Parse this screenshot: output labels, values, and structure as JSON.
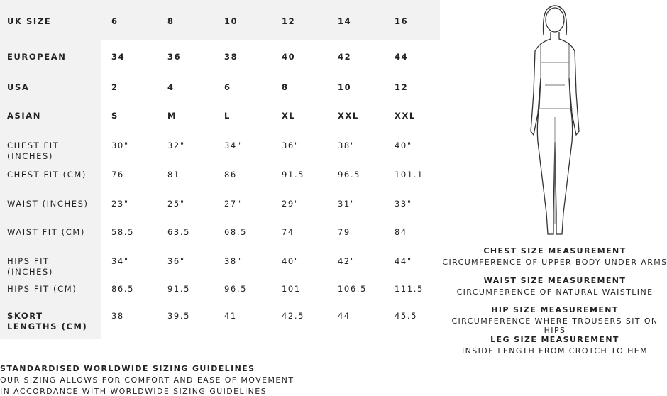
{
  "table": {
    "header": [
      "UK SIZE",
      "6",
      "8",
      "10",
      "12",
      "14",
      "16"
    ],
    "rows": [
      [
        "EUROPEAN",
        "34",
        "36",
        "38",
        "40",
        "42",
        "44"
      ],
      [
        "USA",
        "2",
        "4",
        "6",
        "8",
        "10",
        "12"
      ],
      [
        "ASIAN",
        "S",
        "M",
        "L",
        "XL",
        "XXL",
        "XXL"
      ],
      [
        "CHEST FIT (INCHES)",
        "30\"",
        "32\"",
        "34\"",
        "36\"",
        "38\"",
        "40\""
      ],
      [
        "CHEST FIT (CM)",
        "76",
        "81",
        "86",
        "91.5",
        "96.5",
        "101.1"
      ],
      [
        "WAIST (INCHES)",
        "23\"",
        "25\"",
        "27\"",
        "29\"",
        "31\"",
        "33\""
      ],
      [
        "WAIST FIT (CM)",
        "58.5",
        "63.5",
        "68.5",
        "74",
        "79",
        "84"
      ],
      [
        "HIPS FIT (INCHES)",
        "34\"",
        "36\"",
        "38\"",
        "40\"",
        "42\"",
        "44\""
      ],
      [
        "HIPS FIT (CM)",
        "86.5",
        "91.5",
        "96.5",
        "101",
        "106.5",
        "111.5"
      ],
      [
        "SKORT LENGTHS (CM)",
        "38",
        "39.5",
        "41",
        "42.5",
        "44",
        "45.5"
      ]
    ]
  },
  "measurements": [
    {
      "title": "CHEST SIZE MEASUREMENT",
      "description": "CIRCUMFERENCE OF UPPER BODY UNDER ARMS"
    },
    {
      "title": "WAIST SIZE MEASUREMENT",
      "description": "CIRCUMFERENCE OF NATURAL WAISTLINE"
    },
    {
      "title": "HIP SIZE MEASUREMENT",
      "description": "CIRCUMFERENCE WHERE TROUSERS SIT ON HIPS"
    },
    {
      "title": "LEG SIZE MEASUREMENT",
      "description": "INSIDE LENGTH FROM CROTCH TO HEM"
    }
  ],
  "footer": {
    "title": "STANDARDISED WORLDWIDE SIZING GUIDELINES",
    "lines": [
      "OUR SIZING ALLOWS FOR COMFORT AND EASE OF MOVEMENT",
      "IN ACCORDANCE WITH WORLDWIDE SIZING GUIDELINES"
    ]
  }
}
